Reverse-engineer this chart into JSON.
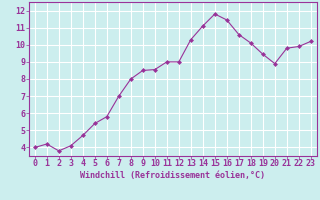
{
  "x": [
    0,
    1,
    2,
    3,
    4,
    5,
    6,
    7,
    8,
    9,
    10,
    11,
    12,
    13,
    14,
    15,
    16,
    17,
    18,
    19,
    20,
    21,
    22,
    23
  ],
  "y": [
    4.0,
    4.2,
    3.8,
    4.1,
    4.7,
    5.4,
    5.8,
    7.0,
    8.0,
    8.5,
    8.55,
    9.0,
    9.0,
    10.3,
    11.1,
    11.8,
    11.45,
    10.6,
    10.1,
    9.45,
    8.9,
    9.8,
    9.9,
    10.2
  ],
  "line_color": "#993399",
  "marker": "D",
  "marker_size": 2,
  "bg_color": "#cceeee",
  "grid_color": "#ffffff",
  "xlabel": "Windchill (Refroidissement éolien,°C)",
  "ylabel_ticks": [
    4,
    5,
    6,
    7,
    8,
    9,
    10,
    11,
    12
  ],
  "xlim": [
    -0.5,
    23.5
  ],
  "ylim": [
    3.5,
    12.5
  ],
  "xticks": [
    0,
    1,
    2,
    3,
    4,
    5,
    6,
    7,
    8,
    9,
    10,
    11,
    12,
    13,
    14,
    15,
    16,
    17,
    18,
    19,
    20,
    21,
    22,
    23
  ],
  "axis_label_fontsize": 6,
  "tick_fontsize": 6
}
